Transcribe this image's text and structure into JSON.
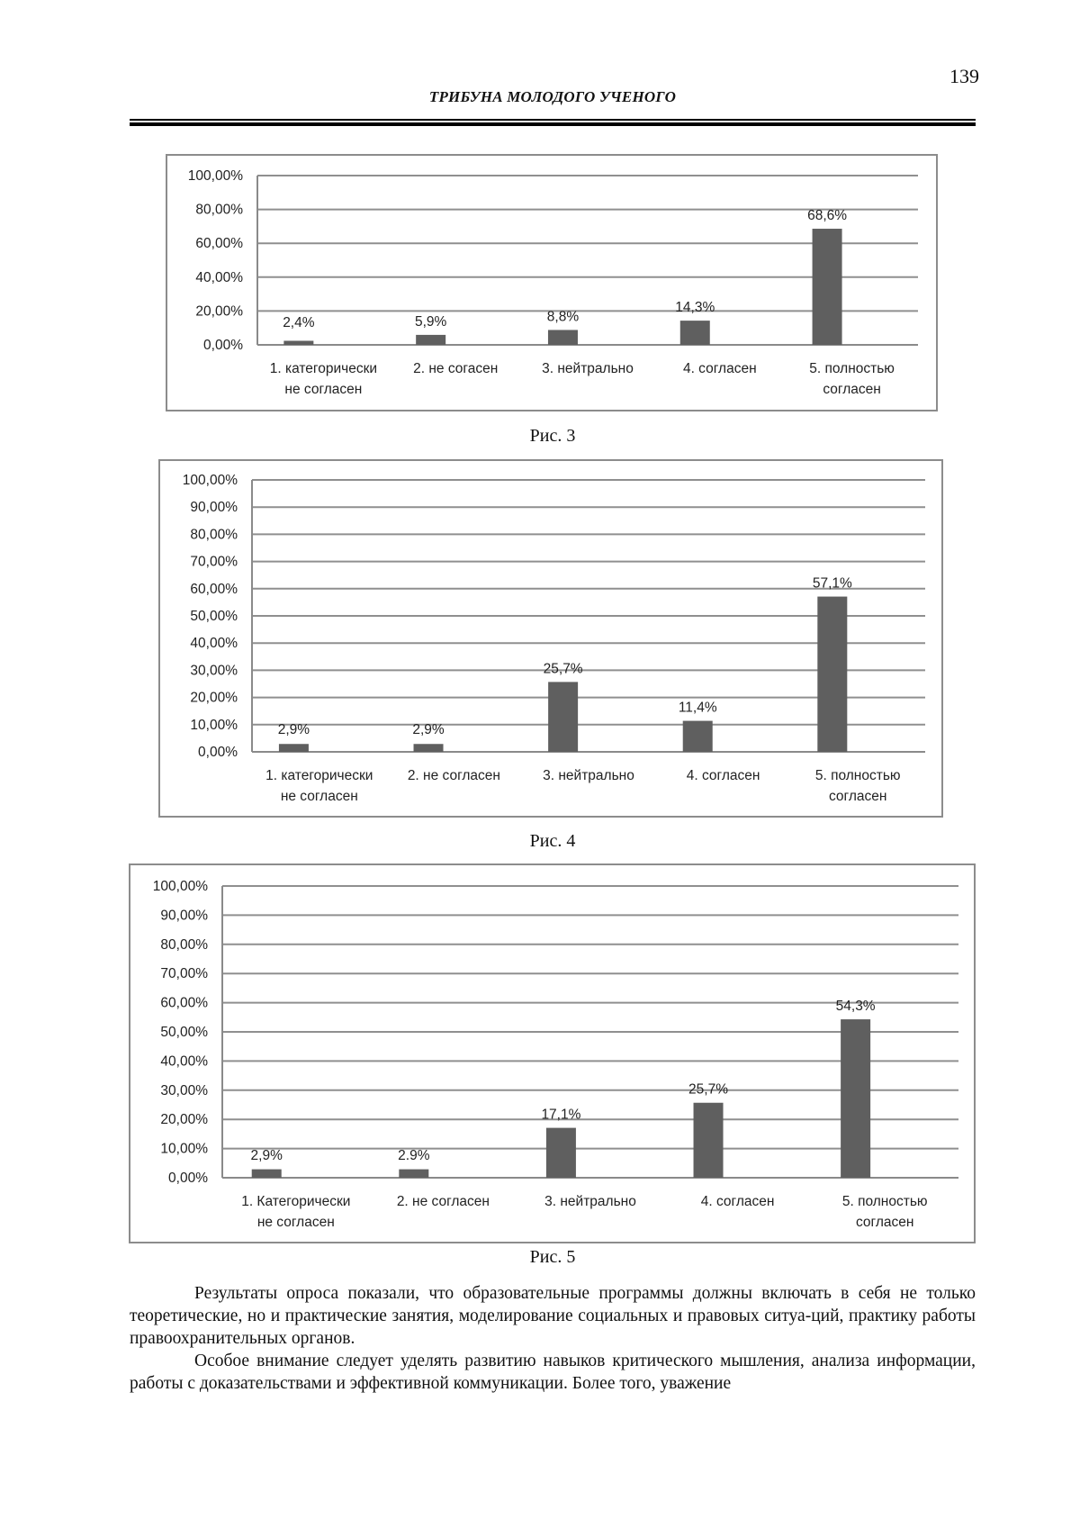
{
  "header": {
    "page_number": "139",
    "running_title": "ТРИБУНА МОЛОДОГО УЧЕНОГО"
  },
  "captions": [
    "Рис. 3",
    "Рис. 4",
    "Рис. 5"
  ],
  "body_paragraphs": [
    "Результаты опроса показали, что образовательные программы должны включать в себя не только теоретические, но и практические занятия, моделирование социальных и правовых ситуа-ций, практику работы правоохранительных органов.",
    "Особое внимание следует уделять развитию навыков критического мышления, анализа информации, работы с доказательствами и эффективной коммуникации. Более того, уважение"
  ],
  "chart_data": [
    {
      "type": "bar",
      "categories": [
        [
          "1. категорически",
          "не согласен"
        ],
        [
          "2. не согасен"
        ],
        [
          "3. нейтрально"
        ],
        [
          "4. согласен"
        ],
        [
          "5. полностью",
          "согласен"
        ]
      ],
      "values": [
        2.4,
        5.9,
        8.8,
        14.3,
        68.6
      ],
      "data_labels": [
        "2,4%",
        "5,9%",
        "8,8%",
        "14,3%",
        "68,6%"
      ],
      "ylim": [
        0,
        100
      ],
      "yticks": [
        "0,00%",
        "20,00%",
        "40,00%",
        "60,00%",
        "80,00%",
        "100,00%"
      ],
      "grid": true,
      "bar_color": "#5f5f5f"
    },
    {
      "type": "bar",
      "categories": [
        [
          "1. категорически",
          "не согласен"
        ],
        [
          "2. не согласен"
        ],
        [
          "3. нейтрально"
        ],
        [
          "4. согласен"
        ],
        [
          "5. полностью",
          "согласен"
        ]
      ],
      "values": [
        2.9,
        2.9,
        25.7,
        11.4,
        57.1
      ],
      "data_labels": [
        "2,9%",
        "2,9%",
        "25,7%",
        "11,4%",
        "57,1%"
      ],
      "ylim": [
        0,
        100
      ],
      "yticks": [
        "0,00%",
        "10,00%",
        "20,00%",
        "30,00%",
        "40,00%",
        "50,00%",
        "60,00%",
        "70,00%",
        "80,00%",
        "90,00%",
        "100,00%"
      ],
      "grid": true,
      "bar_color": "#5f5f5f"
    },
    {
      "type": "bar",
      "categories": [
        [
          "1. Категорически",
          "не согласен"
        ],
        [
          "2. не согласен"
        ],
        [
          "3. нейтрально"
        ],
        [
          "4. согласен"
        ],
        [
          "5. полностью",
          "согласен"
        ]
      ],
      "values": [
        2.9,
        2.9,
        17.1,
        25.7,
        54.3
      ],
      "data_labels": [
        "2,9%",
        "2.9%",
        "17,1%",
        "25,7%",
        "54,3%"
      ],
      "ylim": [
        0,
        100
      ],
      "yticks": [
        "0,00%",
        "10,00%",
        "20,00%",
        "30,00%",
        "40,00%",
        "50,00%",
        "60,00%",
        "70,00%",
        "80,00%",
        "90,00%",
        "100,00%"
      ],
      "grid": true,
      "bar_color": "#5f5f5f"
    }
  ]
}
